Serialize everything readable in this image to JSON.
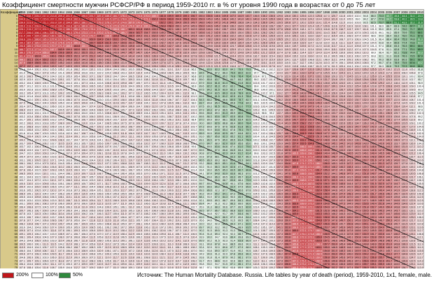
{
  "title": "Коэффициент смертности мужчин РСФСР/РФ в период 1959-2010 гг. в % от уровня 1990 года в возрастах от 0 до 75 лет",
  "chart_data": {
    "type": "heatmap",
    "corner_label": "Коэффициент",
    "x": [
      1959,
      1960,
      1961,
      1962,
      1963,
      1964,
      1965,
      1966,
      1967,
      1968,
      1969,
      1970,
      1971,
      1972,
      1973,
      1974,
      1975,
      1976,
      1977,
      1978,
      1979,
      1980,
      1981,
      1982,
      1983,
      1984,
      1985,
      1986,
      1987,
      1988,
      1989,
      1990,
      1991,
      1992,
      1993,
      1994,
      1995,
      1996,
      1997,
      1998,
      1999,
      2000,
      2001,
      2002,
      2003,
      2004,
      2005,
      2006,
      2007,
      2008,
      2009,
      2010
    ],
    "y": [
      0,
      1,
      2,
      3,
      4,
      5,
      6,
      7,
      8,
      9,
      10,
      11,
      12,
      13,
      14,
      15,
      16,
      17,
      18,
      19,
      20,
      21,
      22,
      23,
      24,
      25,
      26,
      27,
      28,
      29,
      30,
      31,
      32,
      33,
      34,
      35,
      36,
      37,
      38,
      39,
      40,
      41,
      42,
      43,
      44,
      45,
      46,
      47,
      48,
      49,
      50,
      51,
      52,
      53,
      54,
      55,
      56,
      57,
      58,
      59,
      60,
      61,
      62,
      63,
      64,
      65,
      66,
      67,
      68,
      69,
      70,
      71,
      72,
      73,
      74,
      75
    ],
    "value_unit": "% от уровня 1990 года",
    "colors": {
      "high": "#c0161b",
      "mid": "#ffffff",
      "low": "#2f8a3e"
    },
    "scale": {
      "high": 200,
      "mid": 100,
      "low": 50
    }
  },
  "legend": {
    "items": [
      {
        "label": "200%",
        "color": "#c0161b"
      },
      {
        "label": "100%",
        "color": "#ffffff"
      },
      {
        "label": "50%",
        "color": "#2f8a3e"
      }
    ]
  },
  "source": "Источник: The Human Mortality Database. Russia. Life tables by year of death (period), 1959-2010, 1x1, female, male."
}
